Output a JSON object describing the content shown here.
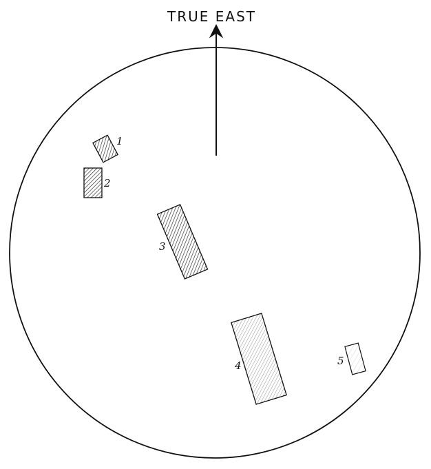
{
  "direction_label": "TRUE EAST",
  "markers": [
    {
      "id": "1",
      "label": "1"
    },
    {
      "id": "2",
      "label": "2"
    },
    {
      "id": "3",
      "label": "3"
    },
    {
      "id": "4",
      "label": "4"
    },
    {
      "id": "5",
      "label": "5"
    }
  ],
  "colors": {
    "ink": "#111111",
    "background": "#ffffff"
  }
}
